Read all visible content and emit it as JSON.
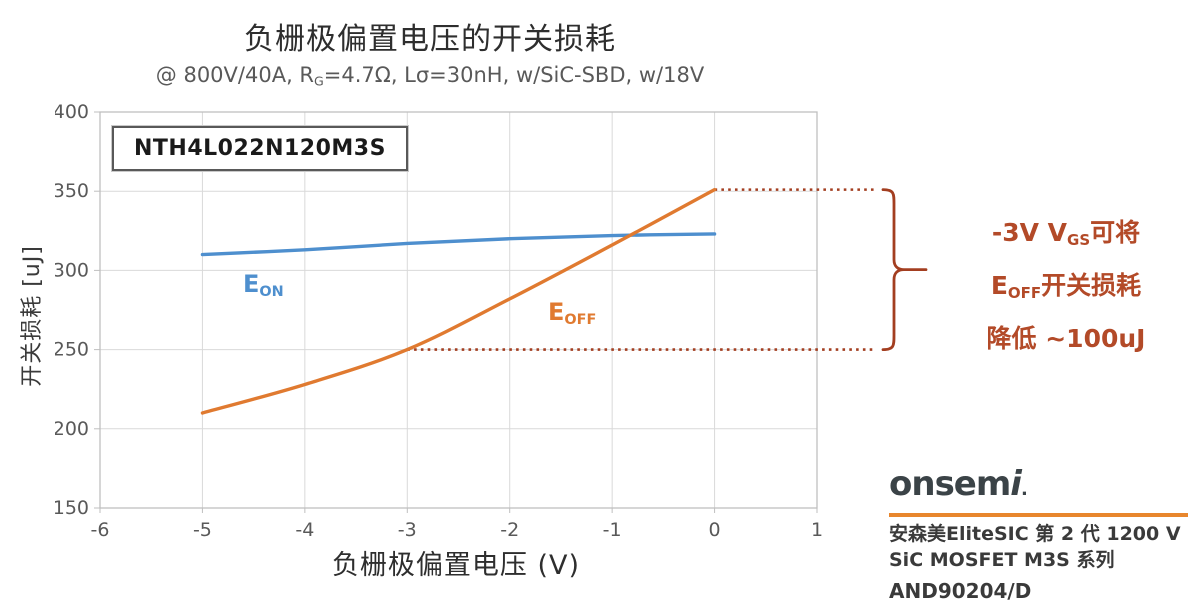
{
  "header": {
    "title": "负栅极偏置电压的开关损耗",
    "subtitle_pre": "@ 800V/40A, R",
    "subtitle_sub": "G",
    "subtitle_post": "=4.7Ω, Lσ=30nH, w/SiC-SBD, w/18V"
  },
  "chart_data": {
    "type": "line",
    "title": "负栅极偏置电压的开关损耗",
    "subtitle": "@ 800V/40A, RG=4.7Ω, Lσ=30nH, w/SiC-SBD, w/18V",
    "xlabel": "负栅极偏置电压 (V)",
    "ylabel": "开关损耗 [uJ]",
    "device": "NTH4L022N120M3S",
    "xlim": [
      -6,
      1
    ],
    "ylim": [
      150,
      400
    ],
    "x_ticks": [
      -6,
      -5,
      -4,
      -3,
      -2,
      -1,
      0,
      1
    ],
    "y_ticks": [
      150,
      200,
      250,
      300,
      350,
      400
    ],
    "grid": true,
    "legend_position": "inline-labels",
    "grid_color": "#d9d9d9",
    "border_color": "#bfbfbf",
    "tick_color": "#595959",
    "reference_color": "#a33e20",
    "series": [
      {
        "name": "EON",
        "label_main": "E",
        "label_sub": "ON",
        "color": "#4e8fce",
        "x": [
          -5,
          -4,
          -3,
          -2,
          -1,
          0
        ],
        "values": [
          310,
          313,
          317,
          320,
          322,
          323
        ]
      },
      {
        "name": "EOFF",
        "label_main": "E",
        "label_sub": "OFF",
        "color": "#e07a30",
        "x": [
          -5,
          -4,
          -3,
          -2,
          -1,
          0
        ],
        "values": [
          210,
          228,
          250,
          282,
          316,
          351
        ]
      }
    ],
    "reference_lines": [
      {
        "start_x": 0,
        "value": 351
      },
      {
        "start_x": -3,
        "value": 250
      }
    ]
  },
  "annotation": {
    "color": "#b34a28",
    "line1_pre": "-3V V",
    "line1_sub": "GS",
    "line1_post": "可将",
    "line2_pre": "E",
    "line2_sub": "OFF",
    "line2_post": "开关损耗",
    "line3": "降低 ~100uJ"
  },
  "branding": {
    "logo_main": "onsem",
    "logo_i": "i",
    "logo_dot": ".",
    "underline_color": "#e8862d",
    "product_line1": "安森美EliteSIC 第 2 代 1200 V",
    "product_line2": "SiC MOSFET M3S 系列",
    "doc_number": "AND90204/D"
  }
}
